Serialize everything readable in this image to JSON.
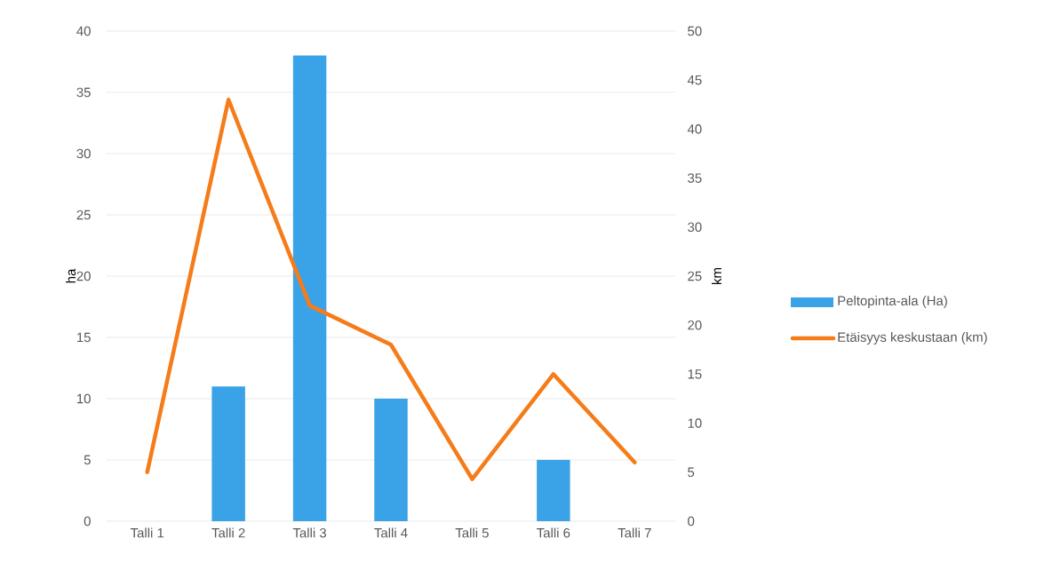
{
  "chart_data": {
    "type": "bar",
    "categories": [
      "Talli 1",
      "Talli 2",
      "Talli 3",
      "Talli 4",
      "Talli 5",
      "Talli 6",
      "Talli 7"
    ],
    "series": [
      {
        "name": "Peltopinta-ala (Ha)",
        "color": "#3aa3e8",
        "values": [
          0,
          11,
          38,
          10,
          0,
          5,
          0
        ]
      },
      {
        "name": "Etäisyys keskustaan (km)",
        "type": "line",
        "axis": "y2",
        "color": "#f57c19",
        "values": [
          5,
          43,
          22,
          18,
          4.3,
          15,
          6
        ]
      }
    ],
    "ylabel": "ha",
    "y2label": "km",
    "ylim": [
      0,
      40
    ],
    "yticks": [
      0,
      5,
      10,
      15,
      20,
      25,
      30,
      35,
      40
    ],
    "y2lim": [
      0,
      50
    ],
    "y2ticks": [
      0,
      5,
      10,
      15,
      20,
      25,
      30,
      35,
      40,
      45,
      50
    ],
    "grid": "y",
    "legend": "right",
    "marker": "none",
    "line_style": "solid"
  }
}
